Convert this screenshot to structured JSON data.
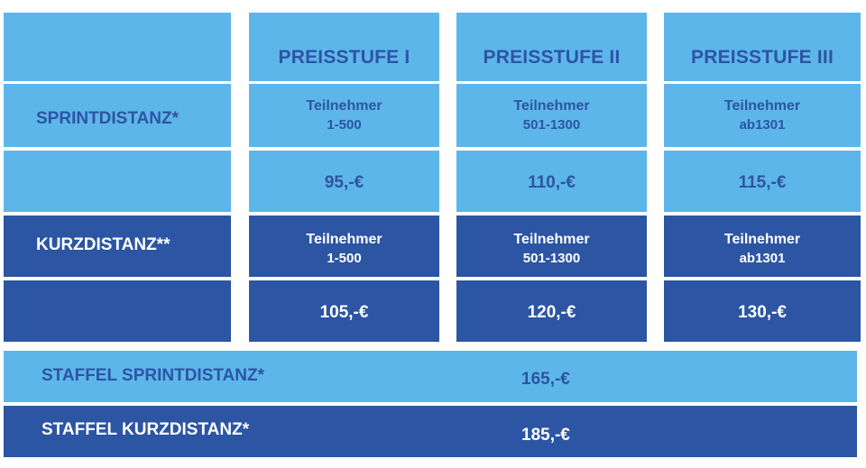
{
  "tiers": [
    "PREISSTUFE I",
    "PREISSTUFE II",
    "PREISSTUFE III"
  ],
  "sprint": {
    "label": "SPRINTDISTANZ*",
    "participants_label": "Teilnehmer",
    "ranges": [
      "1-500",
      "501-1300",
      "ab1301"
    ],
    "prices": [
      "95,-€",
      "110,-€",
      "115,-€"
    ]
  },
  "kurz": {
    "label": "KURZDISTANZ**",
    "participants_label": "Teilnehmer",
    "ranges": [
      "1-500",
      "501-1300",
      "ab1301"
    ],
    "prices": [
      "105,-€",
      "120,-€",
      "130,-€"
    ]
  },
  "staffel_sprint": {
    "label": "STAFFEL SPRINTDISTANZ*",
    "price": "165,-€"
  },
  "staffel_kurz": {
    "label": "STAFFEL KURZDISTANZ*",
    "price": "185,-€"
  }
}
